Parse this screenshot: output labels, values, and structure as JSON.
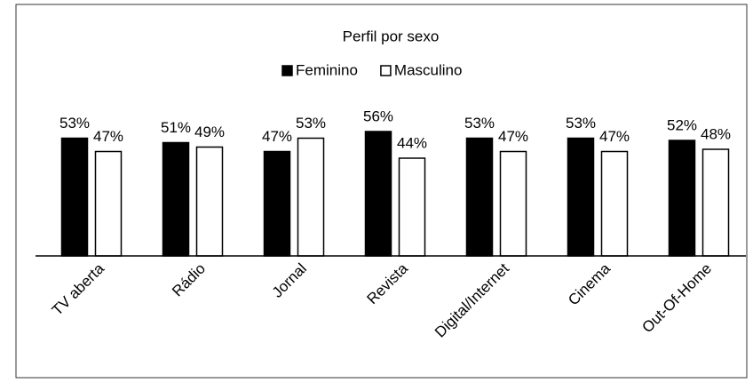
{
  "chart_data": {
    "type": "bar",
    "title": "Perfil por sexo",
    "categories": [
      "TV aberta",
      "Rádio",
      "Jornal",
      "Revista",
      "Digital/Internet",
      "Cinema",
      "Out-Of-Home"
    ],
    "series": [
      {
        "name": "Feminino",
        "color": "#000000",
        "values": [
          53,
          51,
          47,
          56,
          53,
          53,
          52
        ],
        "value_labels": [
          "53%",
          "51%",
          "47%",
          "56%",
          "53%",
          "53%",
          "52%"
        ]
      },
      {
        "name": "Masculino",
        "color": "#ffffff",
        "values": [
          47,
          49,
          53,
          44,
          47,
          47,
          48
        ],
        "value_labels": [
          "47%",
          "49%",
          "53%",
          "44%",
          "47%",
          "47%",
          "48%"
        ]
      }
    ],
    "legend": "top"
  }
}
